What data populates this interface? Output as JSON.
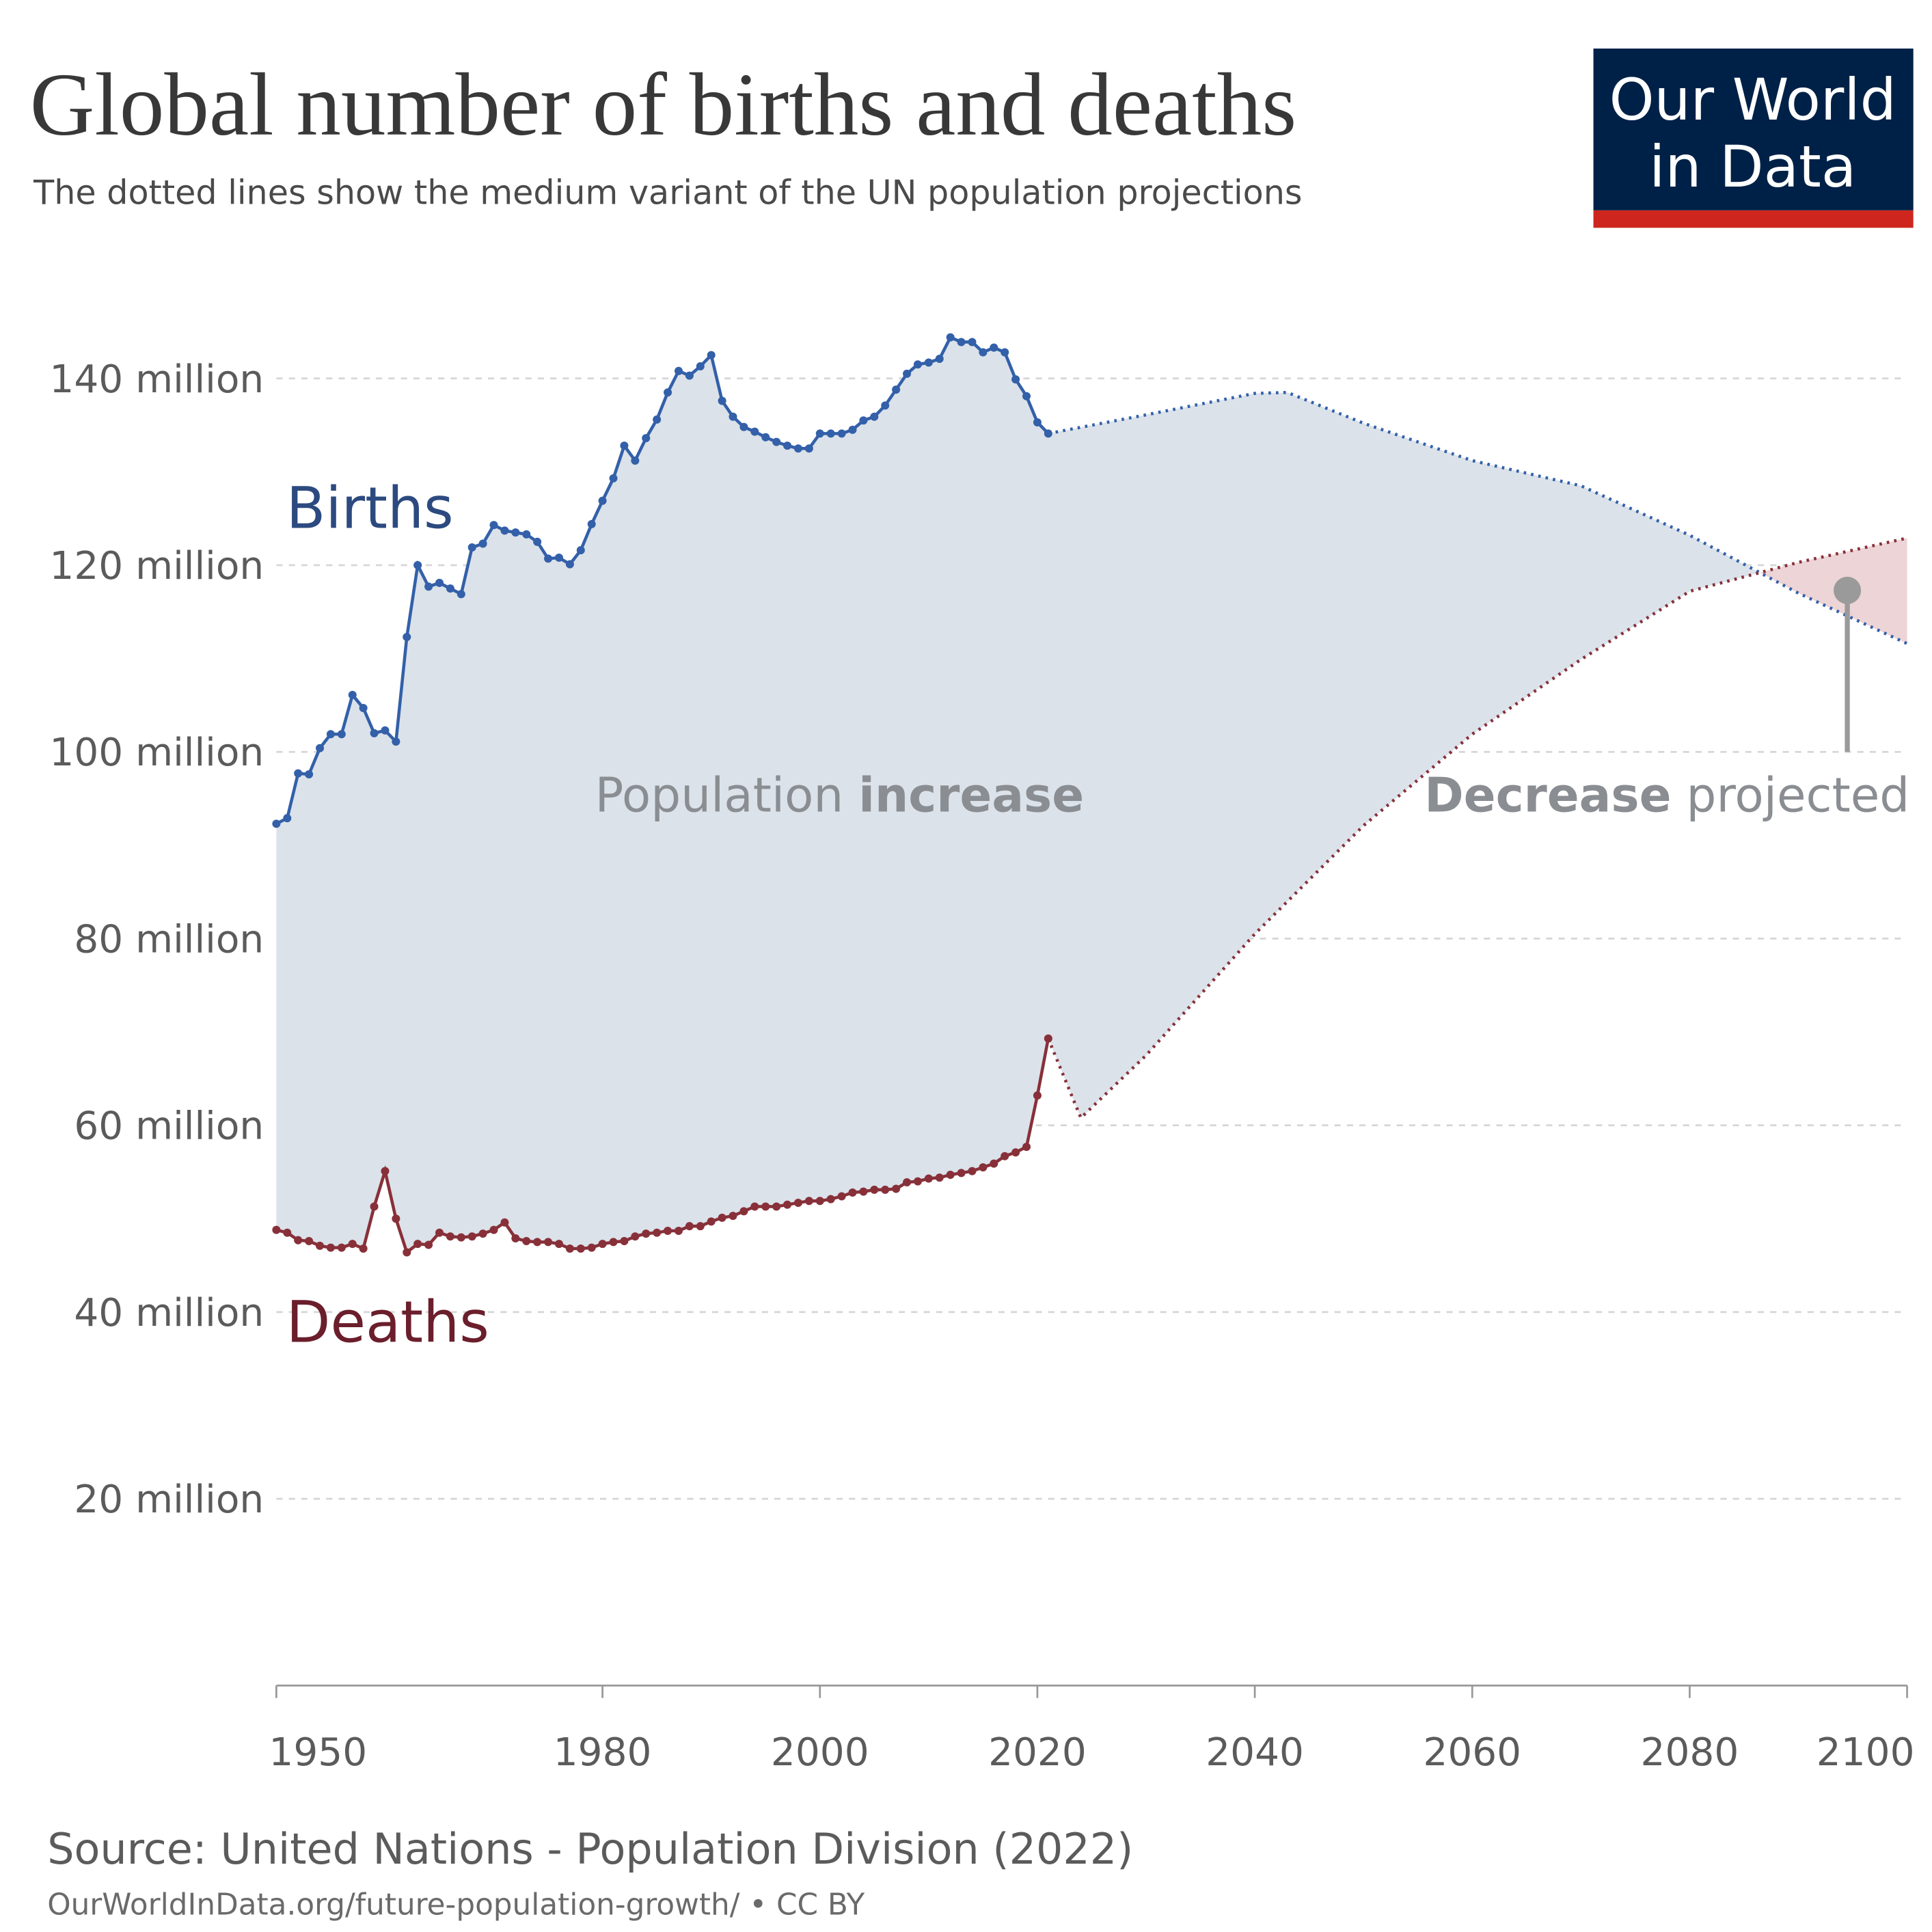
{
  "header": {
    "title": "Global number of births and deaths",
    "subtitle": "The dotted lines show the medium variant of the UN population projections"
  },
  "logo": {
    "line1": "Our World",
    "line2": "in Data",
    "bg": "#002147",
    "accent": "#ce261e"
  },
  "footer": {
    "source": "Source: United Nations - Population Division (2022)",
    "url": "OurWorldInData.org/future-population-growth/ • CC BY"
  },
  "chart_data": {
    "type": "line",
    "title": "Global number of births and deaths",
    "xlim": [
      1950,
      2100
    ],
    "ylim": [
      0,
      150000000
    ],
    "grid": true,
    "x_ticks": [
      1950,
      1980,
      2000,
      2020,
      2040,
      2060,
      2080,
      2100
    ],
    "x_tick_labels": [
      "1950",
      "1980",
      "2000",
      "2020",
      "2040",
      "2060",
      "2080",
      "2100"
    ],
    "y_ticks": [
      20,
      40,
      60,
      80,
      100,
      120,
      140
    ],
    "y_tick_labels": [
      "20 million",
      "40 million",
      "60 million",
      "80 million",
      "100 million",
      "120 million",
      "140 million"
    ],
    "colors": {
      "births": "#3360a9",
      "deaths": "#883039",
      "increase_fill": "#dbe2ea",
      "decrease_fill": "#ecd4d7",
      "annotation": "#9a9a9a"
    },
    "series": [
      {
        "name": "Births",
        "unit": "million",
        "historical": {
          "x": [
            1950,
            1951,
            1952,
            1953,
            1954,
            1955,
            1956,
            1957,
            1958,
            1959,
            1960,
            1961,
            1962,
            1963,
            1964,
            1965,
            1966,
            1967,
            1968,
            1969,
            1970,
            1971,
            1972,
            1973,
            1974,
            1975,
            1976,
            1977,
            1978,
            1979,
            1980,
            1981,
            1982,
            1983,
            1984,
            1985,
            1986,
            1987,
            1988,
            1989,
            1990,
            1991,
            1992,
            1993,
            1994,
            1995,
            1996,
            1997,
            1998,
            1999,
            2000,
            2001,
            2002,
            2003,
            2004,
            2005,
            2006,
            2007,
            2008,
            2009,
            2010,
            2011,
            2012,
            2013,
            2014,
            2015,
            2016,
            2017,
            2018,
            2019,
            2020,
            2021
          ],
          "y": [
            92.3,
            92.9,
            97.7,
            97.6,
            100.4,
            101.9,
            101.9,
            106.1,
            104.7,
            102,
            102.3,
            101.1,
            112.3,
            120,
            117.7,
            118.1,
            117.5,
            116.9,
            121.9,
            122.3,
            124.3,
            123.7,
            123.5,
            123.3,
            122.5,
            120.7,
            120.8,
            120.1,
            121.6,
            124.4,
            126.9,
            129.3,
            132.8,
            131.2,
            133.6,
            135.6,
            138.5,
            140.8,
            140.3,
            141.3,
            142.5,
            137.6,
            135.9,
            134.8,
            134.3,
            133.7,
            133.2,
            132.8,
            132.5,
            132.5,
            134.1,
            134.1,
            134.1,
            134.5,
            135.5,
            135.9,
            137.1,
            138.8,
            140.5,
            141.5,
            141.7,
            142.1,
            144.4,
            143.9,
            143.9,
            142.8,
            143.3,
            142.8,
            139.9,
            138.1,
            135.3,
            134.1
          ]
        },
        "projection": {
          "x": [
            2021,
            2030,
            2040,
            2043,
            2050,
            2060,
            2070,
            2080,
            2090,
            2100
          ],
          "y": [
            134.1,
            136.1,
            138.4,
            138.5,
            135.2,
            131.2,
            128.5,
            123.2,
            117,
            111.6
          ]
        }
      },
      {
        "name": "Deaths",
        "unit": "million",
        "historical": {
          "x": [
            1950,
            1951,
            1952,
            1953,
            1954,
            1955,
            1956,
            1957,
            1958,
            1959,
            1960,
            1961,
            1962,
            1963,
            1964,
            1965,
            1966,
            1967,
            1968,
            1969,
            1970,
            1971,
            1972,
            1973,
            1974,
            1975,
            1976,
            1977,
            1978,
            1979,
            1980,
            1981,
            1982,
            1983,
            1984,
            1985,
            1986,
            1987,
            1988,
            1989,
            1990,
            1991,
            1992,
            1993,
            1994,
            1995,
            1996,
            1997,
            1998,
            1999,
            2000,
            2001,
            2002,
            2003,
            2004,
            2005,
            2006,
            2007,
            2008,
            2009,
            2010,
            2011,
            2012,
            2013,
            2014,
            2015,
            2016,
            2017,
            2018,
            2019,
            2020,
            2021
          ],
          "y": [
            48.8,
            48.5,
            47.7,
            47.6,
            47.1,
            46.9,
            46.9,
            47.3,
            46.8,
            51.3,
            55.1,
            50,
            46.4,
            47.3,
            47.2,
            48.5,
            48.1,
            48,
            48.1,
            48.4,
            48.8,
            49.6,
            47.9,
            47.6,
            47.5,
            47.5,
            47.3,
            46.8,
            46.8,
            46.9,
            47.3,
            47.5,
            47.6,
            48.1,
            48.4,
            48.5,
            48.7,
            48.7,
            49.2,
            49.2,
            49.7,
            50.1,
            50.3,
            50.8,
            51.3,
            51.3,
            51.3,
            51.5,
            51.7,
            51.9,
            51.9,
            52.1,
            52.4,
            52.8,
            52.9,
            53.1,
            53.1,
            53.2,
            53.9,
            54,
            54.3,
            54.4,
            54.7,
            54.9,
            55.1,
            55.5,
            55.9,
            56.7,
            57.1,
            57.7,
            63.2,
            69.3
          ]
        },
        "projection": {
          "x": [
            2021,
            2024,
            2030,
            2040,
            2050,
            2060,
            2070,
            2080,
            2090,
            2100
          ],
          "y": [
            69.3,
            60.8,
            67.5,
            80.5,
            92.1,
            101.9,
            109.9,
            117.2,
            120.3,
            122.9
          ]
        }
      }
    ],
    "annotations": {
      "births_label": "Births",
      "deaths_label": "Deaths",
      "increase_a": "Population ",
      "increase_b": "increase",
      "decrease_a": "Decrease",
      "decrease_b": " projected",
      "marker_year": 2094.5,
      "marker_value": 117.3
    }
  }
}
